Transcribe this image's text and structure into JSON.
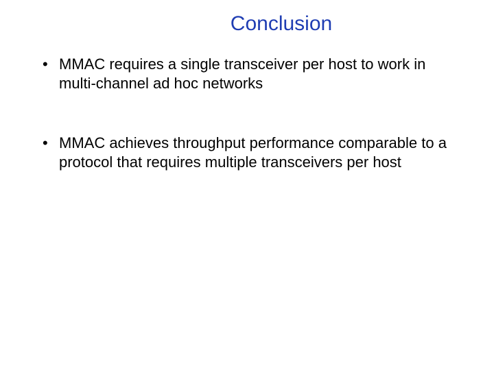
{
  "slide": {
    "title": "Conclusion",
    "title_color": "#1f3db3",
    "title_fontsize": 30,
    "body_fontsize": 22,
    "body_color": "#000000",
    "background_color": "#ffffff",
    "bullets": [
      {
        "text": "MMAC requires a single transceiver per host to work in multi-channel ad hoc networks"
      },
      {
        "text": "MMAC achieves throughput performance comparable to a protocol that requires multiple transceivers per host"
      }
    ]
  }
}
